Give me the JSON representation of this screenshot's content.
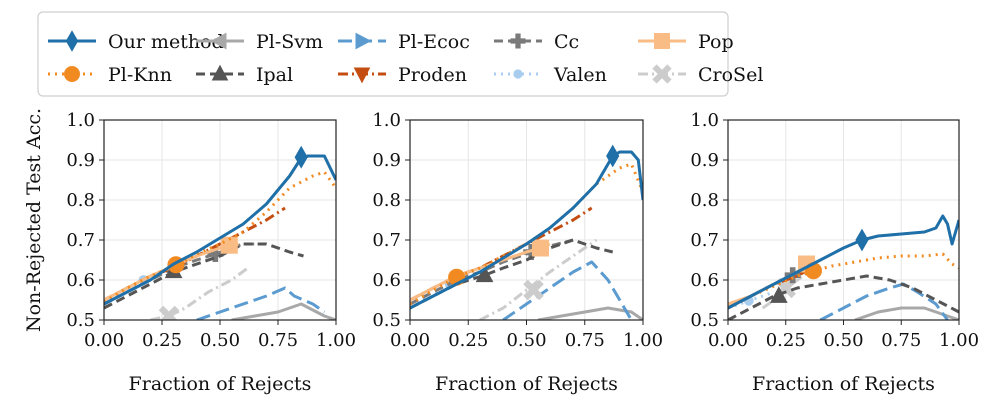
{
  "figure": {
    "ylabel": "Non-Rejected Test Acc.",
    "xlabel": "Fraction of Rejects"
  },
  "legend": [
    {
      "key": "ours",
      "label": "Our method",
      "color": "#1f6fa8",
      "dash": "solid",
      "marker": "diamond"
    },
    {
      "key": "plknn",
      "label": "Pl-Knn",
      "color": "#f28a22",
      "dash": "dot",
      "marker": "circle"
    },
    {
      "key": "plsvm",
      "label": "Pl-Svm",
      "color": "#a8a8a8",
      "dash": "solid",
      "marker": "tri-left"
    },
    {
      "key": "ipal",
      "label": "Ipal",
      "color": "#555555",
      "dash": "dash",
      "marker": "tri-up"
    },
    {
      "key": "plecoc",
      "label": "Pl-Ecoc",
      "color": "#5b9bd0",
      "dash": "longdash",
      "marker": "tri-right"
    },
    {
      "key": "proden",
      "label": "Proden",
      "color": "#c44e12",
      "dash": "dashdot",
      "marker": "tri-down"
    },
    {
      "key": "cc",
      "label": "Cc",
      "color": "#7a7a7a",
      "dash": "dash",
      "marker": "plus"
    },
    {
      "key": "valen",
      "label": "Valen",
      "color": "#a8cdef",
      "dash": "dot",
      "marker": "smalldot"
    },
    {
      "key": "pop",
      "label": "Pop",
      "color": "#f9bc84",
      "dash": "solid",
      "marker": "square"
    },
    {
      "key": "crosel",
      "label": "CroSel",
      "color": "#cccccc",
      "dash": "dashdot",
      "marker": "xmark"
    }
  ],
  "chart_data": [
    {
      "type": "line",
      "xlabel": "Fraction of Rejects",
      "ylabel": "Non-Rejected Test Acc.",
      "xlim": [
        0,
        1
      ],
      "ylim": [
        0.5,
        1.0
      ],
      "xticks": [
        "0.00",
        "0.25",
        "0.50",
        "0.75",
        "1.00"
      ],
      "yticks": [
        "0.5",
        "0.6",
        "0.7",
        "0.8",
        "0.9",
        "1.0"
      ],
      "series": [
        {
          "key": "ours",
          "x": [
            0,
            0.1,
            0.2,
            0.3,
            0.4,
            0.5,
            0.6,
            0.7,
            0.8,
            0.85,
            0.88,
            0.95,
            1.0
          ],
          "y": [
            0.54,
            0.57,
            0.6,
            0.64,
            0.67,
            0.705,
            0.74,
            0.79,
            0.86,
            0.905,
            0.91,
            0.91,
            0.85
          ],
          "mark": [
            0.85,
            0.907
          ]
        },
        {
          "key": "plknn",
          "x": [
            0,
            0.1,
            0.2,
            0.32,
            0.4,
            0.5,
            0.6,
            0.7,
            0.8,
            0.9,
            0.95,
            1.0
          ],
          "y": [
            0.545,
            0.58,
            0.61,
            0.638,
            0.665,
            0.69,
            0.72,
            0.77,
            0.83,
            0.86,
            0.87,
            0.83
          ],
          "mark": [
            0.31,
            0.638
          ]
        },
        {
          "key": "plsvm",
          "x": [
            0.55,
            0.65,
            0.75,
            0.85,
            0.95,
            1.0
          ],
          "y": [
            0.5,
            0.51,
            0.52,
            0.54,
            0.51,
            0.5
          ],
          "mark": null
        },
        {
          "key": "ipal",
          "x": [
            0,
            0.1,
            0.2,
            0.3,
            0.4,
            0.5,
            0.6,
            0.7,
            0.8,
            0.86
          ],
          "y": [
            0.53,
            0.56,
            0.59,
            0.62,
            0.64,
            0.66,
            0.69,
            0.69,
            0.67,
            0.66
          ],
          "mark": [
            0.3,
            0.622
          ]
        },
        {
          "key": "plecoc",
          "x": [
            0.4,
            0.5,
            0.6,
            0.7,
            0.78,
            0.82,
            0.9,
            0.95
          ],
          "y": [
            0.5,
            0.52,
            0.54,
            0.56,
            0.58,
            0.56,
            0.54,
            0.52
          ],
          "mark": null
        },
        {
          "key": "proden",
          "x": [
            0,
            0.1,
            0.2,
            0.3,
            0.4,
            0.5,
            0.6,
            0.7,
            0.78
          ],
          "y": [
            0.55,
            0.58,
            0.61,
            0.63,
            0.66,
            0.69,
            0.72,
            0.75,
            0.78
          ],
          "mark": null
        },
        {
          "key": "cc",
          "x": [
            0,
            0.1,
            0.2,
            0.3,
            0.4,
            0.48,
            0.55,
            0.6,
            0.65
          ],
          "y": [
            0.54,
            0.57,
            0.6,
            0.63,
            0.65,
            0.665,
            0.68,
            0.69,
            0.69
          ],
          "mark": [
            0.48,
            0.665
          ]
        },
        {
          "key": "valen",
          "x": [
            0,
            0.1,
            0.17,
            0.25,
            0.32
          ],
          "y": [
            0.54,
            0.57,
            0.6,
            0.62,
            0.64
          ],
          "mark": [
            0.17,
            0.6
          ]
        },
        {
          "key": "pop",
          "x": [
            0,
            0.1,
            0.2,
            0.3,
            0.4,
            0.5,
            0.54,
            0.58
          ],
          "y": [
            0.55,
            0.58,
            0.61,
            0.635,
            0.66,
            0.68,
            0.685,
            0.69
          ],
          "mark": [
            0.54,
            0.687
          ]
        },
        {
          "key": "crosel",
          "x": [
            0.2,
            0.28,
            0.35,
            0.45,
            0.55,
            0.62
          ],
          "y": [
            0.5,
            0.51,
            0.53,
            0.57,
            0.6,
            0.63
          ],
          "mark": [
            0.28,
            0.51
          ]
        }
      ]
    },
    {
      "type": "line",
      "xlabel": "Fraction of Rejects",
      "ylabel": "",
      "xlim": [
        0,
        1
      ],
      "ylim": [
        0.5,
        1.0
      ],
      "xticks": [
        "0.00",
        "0.25",
        "0.50",
        "0.75",
        "1.00"
      ],
      "yticks": [
        "0.5",
        "0.6",
        "0.7",
        "0.8",
        "0.9",
        "1.0"
      ],
      "series": [
        {
          "key": "ours",
          "x": [
            0,
            0.1,
            0.2,
            0.3,
            0.4,
            0.5,
            0.6,
            0.7,
            0.8,
            0.87,
            0.9,
            0.95,
            0.98,
            1.0
          ],
          "y": [
            0.53,
            0.56,
            0.59,
            0.62,
            0.655,
            0.69,
            0.73,
            0.78,
            0.84,
            0.91,
            0.92,
            0.92,
            0.9,
            0.8
          ],
          "mark": [
            0.87,
            0.91
          ]
        },
        {
          "key": "plknn",
          "x": [
            0,
            0.1,
            0.2,
            0.3,
            0.4,
            0.5,
            0.6,
            0.7,
            0.8,
            0.9,
            0.95,
            1.0
          ],
          "y": [
            0.54,
            0.575,
            0.607,
            0.63,
            0.66,
            0.69,
            0.73,
            0.78,
            0.84,
            0.88,
            0.89,
            0.82
          ],
          "mark": [
            0.2,
            0.607
          ]
        },
        {
          "key": "plsvm",
          "x": [
            0.55,
            0.65,
            0.75,
            0.85,
            0.95,
            1.0
          ],
          "y": [
            0.5,
            0.51,
            0.52,
            0.53,
            0.52,
            0.5
          ],
          "mark": null
        },
        {
          "key": "ipal",
          "x": [
            0,
            0.1,
            0.2,
            0.32,
            0.4,
            0.5,
            0.6,
            0.7,
            0.8,
            0.87
          ],
          "y": [
            0.53,
            0.56,
            0.59,
            0.612,
            0.63,
            0.65,
            0.68,
            0.7,
            0.68,
            0.67
          ],
          "mark": [
            0.32,
            0.612
          ]
        },
        {
          "key": "plecoc",
          "x": [
            0.4,
            0.5,
            0.6,
            0.7,
            0.78,
            0.85,
            0.9,
            0.95
          ],
          "y": [
            0.5,
            0.54,
            0.58,
            0.62,
            0.645,
            0.6,
            0.55,
            0.5
          ],
          "mark": null
        },
        {
          "key": "proden",
          "x": [
            0,
            0.1,
            0.2,
            0.3,
            0.4,
            0.5,
            0.6,
            0.7,
            0.78
          ],
          "y": [
            0.55,
            0.58,
            0.61,
            0.63,
            0.66,
            0.69,
            0.72,
            0.75,
            0.78
          ],
          "mark": null
        },
        {
          "key": "cc",
          "x": [
            0,
            0.1,
            0.2,
            0.3,
            0.4,
            0.5,
            0.52,
            0.6,
            0.7
          ],
          "y": [
            0.54,
            0.57,
            0.6,
            0.62,
            0.645,
            0.665,
            0.67,
            0.685,
            0.7
          ],
          "mark": [
            0.52,
            0.67
          ]
        },
        {
          "key": "valen",
          "x": [
            0,
            0.1,
            0.17,
            0.25,
            0.3
          ],
          "y": [
            0.54,
            0.56,
            0.59,
            0.61,
            0.62
          ],
          "mark": [
            0.17,
            0.59
          ]
        },
        {
          "key": "pop",
          "x": [
            0,
            0.1,
            0.2,
            0.3,
            0.4,
            0.5,
            0.56,
            0.6
          ],
          "y": [
            0.55,
            0.58,
            0.61,
            0.63,
            0.65,
            0.67,
            0.68,
            0.69
          ],
          "mark": [
            0.56,
            0.68
          ]
        },
        {
          "key": "crosel",
          "x": [
            0.3,
            0.4,
            0.5,
            0.6,
            0.7,
            0.8
          ],
          "y": [
            0.5,
            0.53,
            0.575,
            0.62,
            0.66,
            0.7
          ],
          "mark": [
            0.53,
            0.575
          ]
        }
      ]
    },
    {
      "type": "line",
      "xlabel": "Fraction of Rejects",
      "ylabel": "",
      "xlim": [
        0,
        1
      ],
      "ylim": [
        0.5,
        1.0
      ],
      "xticks": [
        "0.00",
        "0.25",
        "0.50",
        "0.75",
        "1.00"
      ],
      "yticks": [
        "0.5",
        "0.6",
        "0.7",
        "0.8",
        "0.9",
        "1.0"
      ],
      "series": [
        {
          "key": "ours",
          "x": [
            0,
            0.1,
            0.2,
            0.3,
            0.4,
            0.5,
            0.58,
            0.65,
            0.75,
            0.85,
            0.9,
            0.93,
            0.95,
            0.97,
            1.0
          ],
          "y": [
            0.53,
            0.56,
            0.59,
            0.62,
            0.65,
            0.68,
            0.7,
            0.71,
            0.715,
            0.72,
            0.73,
            0.76,
            0.74,
            0.69,
            0.75
          ],
          "mark": [
            0.58,
            0.7
          ]
        },
        {
          "key": "plknn",
          "x": [
            0,
            0.1,
            0.2,
            0.3,
            0.37,
            0.45,
            0.55,
            0.65,
            0.75,
            0.85,
            0.93,
            0.97,
            1.0
          ],
          "y": [
            0.53,
            0.56,
            0.585,
            0.61,
            0.623,
            0.635,
            0.645,
            0.655,
            0.66,
            0.66,
            0.665,
            0.64,
            0.63
          ],
          "mark": [
            0.37,
            0.623
          ]
        },
        {
          "key": "plsvm",
          "x": [
            0.55,
            0.65,
            0.75,
            0.85,
            0.95,
            1.0
          ],
          "y": [
            0.5,
            0.52,
            0.53,
            0.53,
            0.51,
            0.5
          ],
          "mark": null
        },
        {
          "key": "ipal",
          "x": [
            0,
            0.1,
            0.2,
            0.3,
            0.4,
            0.5,
            0.6,
            0.7,
            0.8,
            0.9,
            1.0
          ],
          "y": [
            0.5,
            0.53,
            0.56,
            0.58,
            0.59,
            0.6,
            0.61,
            0.6,
            0.58,
            0.55,
            0.52
          ],
          "mark": [
            0.22,
            0.56
          ]
        },
        {
          "key": "plecoc",
          "x": [
            0.4,
            0.5,
            0.6,
            0.7,
            0.76,
            0.82,
            0.9,
            0.95
          ],
          "y": [
            0.5,
            0.53,
            0.56,
            0.58,
            0.59,
            0.57,
            0.54,
            0.5
          ],
          "mark": null
        },
        {
          "key": "proden",
          "x": [
            0,
            0.1,
            0.2,
            0.3,
            0.36
          ],
          "y": [
            0.53,
            0.56,
            0.59,
            0.61,
            0.63
          ],
          "mark": null
        },
        {
          "key": "cc",
          "x": [
            0,
            0.1,
            0.2,
            0.28,
            0.32
          ],
          "y": [
            0.53,
            0.56,
            0.59,
            0.612,
            0.62
          ],
          "mark": [
            0.28,
            0.612
          ]
        },
        {
          "key": "valen",
          "x": [
            0,
            0.05,
            0.09,
            0.15,
            0.2
          ],
          "y": [
            0.53,
            0.54,
            0.548,
            0.56,
            0.57
          ],
          "mark": [
            0.09,
            0.548
          ]
        },
        {
          "key": "pop",
          "x": [
            0,
            0.1,
            0.2,
            0.3,
            0.34,
            0.38
          ],
          "y": [
            0.54,
            0.56,
            0.59,
            0.62,
            0.64,
            0.645
          ],
          "mark": [
            0.34,
            0.64
          ]
        },
        {
          "key": "crosel",
          "x": [
            0.15,
            0.2,
            0.25,
            0.3,
            0.35
          ],
          "y": [
            0.53,
            0.55,
            0.58,
            0.6,
            0.62
          ],
          "mark": [
            0.25,
            0.58
          ]
        }
      ]
    }
  ]
}
